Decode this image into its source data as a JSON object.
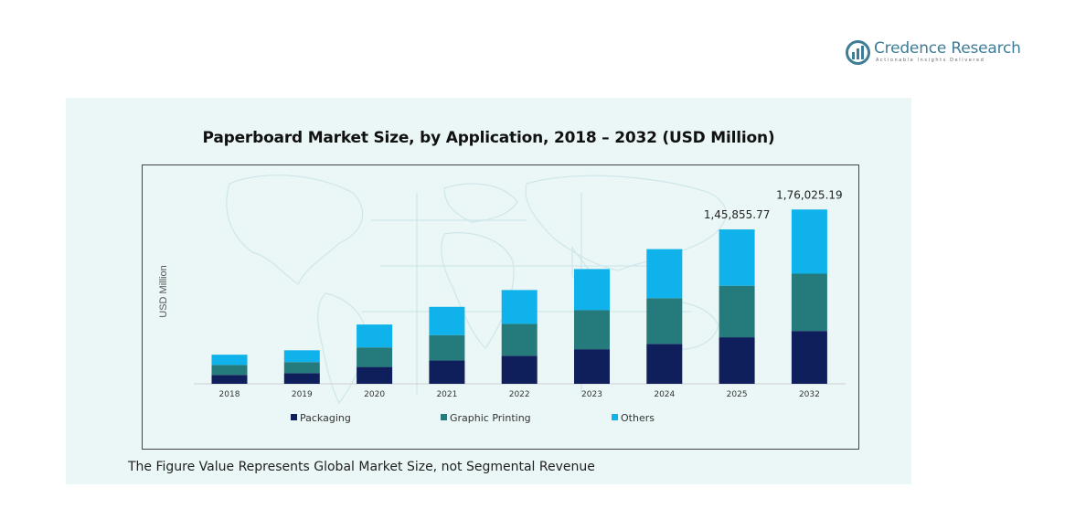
{
  "brand": {
    "name": "Credence Research",
    "tagline": "Actionable Insights Delivered",
    "color": "#3f7d96"
  },
  "footnote": "The Figure Value Represents Global Market Size, not Segmental Revenue",
  "chart_data": {
    "type": "bar",
    "stacked": true,
    "title": "Paperboard Market Size, by Application, 2018 – 2032 (USD Million)",
    "xlabel": "",
    "ylabel": "USD Million",
    "categories": [
      "2018",
      "2019",
      "2020",
      "2021",
      "2022",
      "2023",
      "2024",
      "2025",
      "2032"
    ],
    "series": [
      {
        "name": "Packaging",
        "color": "#0e1f5b",
        "values": [
          7400,
          8900,
          14100,
          19500,
          23500,
          29000,
          33500,
          39000,
          44300
        ]
      },
      {
        "name": "Graphic Printing",
        "color": "#257a7b",
        "values": [
          8400,
          9300,
          16400,
          21300,
          26700,
          32700,
          38300,
          43200,
          48000
        ]
      },
      {
        "name": "Others",
        "color": "#0fb2ea",
        "values": [
          8600,
          9900,
          19200,
          23700,
          28400,
          34500,
          41100,
          47200,
          53800
        ]
      }
    ],
    "totals_labels": {
      "2025": "1,45,855.77",
      "2032": "1,76,025.19"
    },
    "ylim": [
      0,
      180000
    ],
    "y_ticks_visible": false,
    "grid": false,
    "legend_position": "bottom"
  }
}
